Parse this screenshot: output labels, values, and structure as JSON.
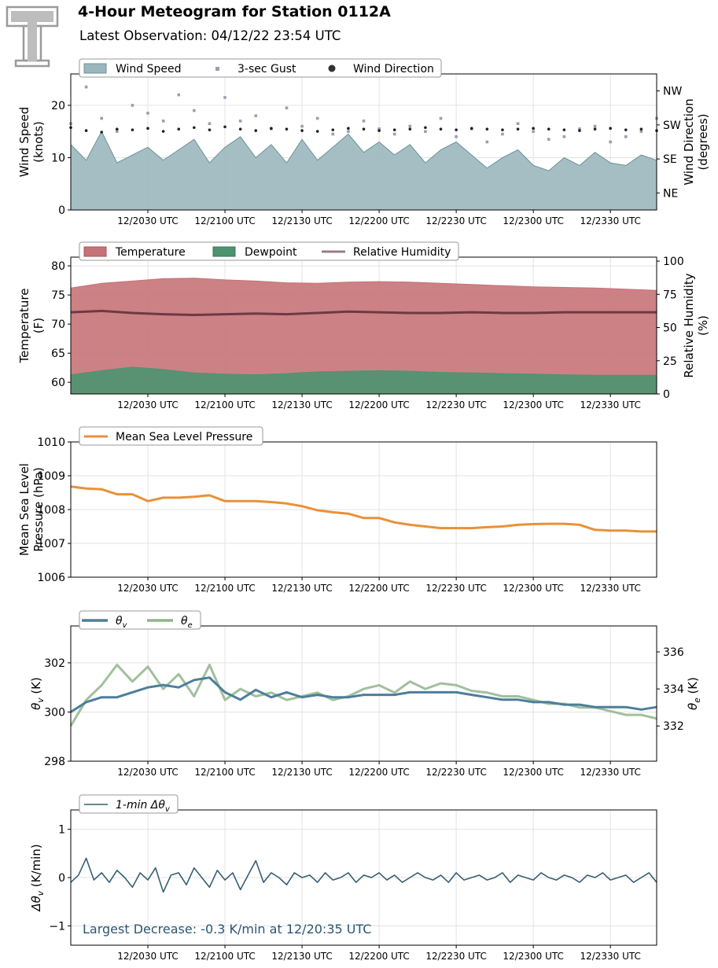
{
  "header": {
    "title": "4-Hour Meteogram for Station 0112A",
    "subtitle": "Latest Observation: 04/12/22 23:54 UTC"
  },
  "colors": {
    "wind_fill": "#9bb7bd",
    "wind_line": "#6b9299",
    "gust": "#9d9cb8",
    "direction": "#222222",
    "temperature": "#c67378",
    "dewpoint": "#4c9470",
    "rh": "#6e3a42",
    "pressure": "#e8913a",
    "theta_v": "#4d7e9b",
    "theta_e": "#8fb58a",
    "dtheta": "#355f72",
    "annotation": "#2b5672"
  },
  "time_axis": {
    "ticks": [
      "12/2030 UTC",
      "12/2100 UTC",
      "12/2130 UTC",
      "12/2200 UTC",
      "12/2230 UTC",
      "12/2300 UTC",
      "12/2330 UTC"
    ],
    "tick_minutes": [
      30,
      60,
      90,
      120,
      150,
      180,
      210
    ],
    "start": "12/20:00 UTC",
    "range_minutes": [
      0,
      228
    ]
  },
  "chart_data": [
    {
      "id": "wind",
      "type": "area",
      "ylabel": "Wind Speed\n(knots)",
      "y2label": "Wind Direction\n(degrees)",
      "ylim": [
        0,
        26
      ],
      "yticks": [
        "0",
        "10",
        "20"
      ],
      "ytick_values": [
        0,
        10,
        20
      ],
      "y2lim": [
        0,
        360
      ],
      "y2ticks": [
        "NE",
        "SE",
        "SW",
        "NW"
      ],
      "y2tick_values": [
        45,
        135,
        225,
        315
      ],
      "legend": [
        "Wind Speed",
        "3-sec Gust",
        "Wind Direction"
      ],
      "legend_location": "top-left",
      "grid": true,
      "series": [
        {
          "name": "Wind Speed",
          "style": "area",
          "axis": "left",
          "x_step_minutes": 6,
          "values": [
            12.5,
            9.5,
            15.0,
            9.0,
            10.5,
            12.0,
            9.5,
            11.5,
            13.5,
            9.0,
            12.0,
            14.0,
            10.0,
            12.5,
            9.0,
            13.5,
            9.5,
            12.0,
            14.5,
            11.0,
            13.0,
            10.5,
            12.5,
            9.0,
            11.5,
            13.0,
            10.5,
            8.0,
            10.0,
            11.5,
            8.5,
            7.5,
            10.0,
            8.5,
            11.0,
            9.0,
            8.5,
            10.5,
            9.5,
            11.5
          ]
        },
        {
          "name": "3-sec Gust",
          "style": "scatter",
          "axis": "left",
          "x_step_minutes": 6,
          "values": [
            16.5,
            23.5,
            17.5,
            15.0,
            20.0,
            18.5,
            17.0,
            22.0,
            19.0,
            16.5,
            21.5,
            17.0,
            18.0,
            15.5,
            19.5,
            16.0,
            17.5,
            14.5,
            15.0,
            17.0,
            15.5,
            14.5,
            16.0,
            15.0,
            17.5,
            14.0,
            15.5,
            13.0,
            14.5,
            16.5,
            15.0,
            13.5,
            14.0,
            15.5,
            16.0,
            13.0,
            14.0,
            15.0,
            17.5,
            13.5
          ]
        },
        {
          "name": "Wind Direction",
          "style": "scatter",
          "axis": "right",
          "x_step_minutes": 6,
          "values": [
            218,
            210,
            206,
            214,
            212,
            216,
            208,
            214,
            218,
            212,
            220,
            214,
            210,
            216,
            214,
            210,
            208,
            212,
            216,
            214,
            210,
            212,
            214,
            218,
            214,
            212,
            216,
            214,
            212,
            214,
            216,
            214,
            212,
            210,
            214,
            216,
            212,
            214,
            210,
            214
          ]
        }
      ]
    },
    {
      "id": "temperature",
      "type": "area",
      "ylabel": "Temperature\n(F)",
      "y2label": "Relative Humidity\n(%)",
      "ylim": [
        58,
        81.5
      ],
      "yticks": [
        "60",
        "65",
        "70",
        "75",
        "80"
      ],
      "ytick_values": [
        60,
        65,
        70,
        75,
        80
      ],
      "y2lim": [
        0,
        103
      ],
      "y2ticks": [
        "0",
        "25",
        "50",
        "75",
        "100"
      ],
      "y2tick_values": [
        0,
        25,
        50,
        75,
        100
      ],
      "legend": [
        "Temperature",
        "Dewpoint",
        "Relative Humidity"
      ],
      "legend_location": "top-left",
      "grid": true,
      "series": [
        {
          "name": "Temperature",
          "style": "area",
          "axis": "left",
          "x_step_minutes": 12,
          "values": [
            76.2,
            77.0,
            77.4,
            77.8,
            77.9,
            77.6,
            77.4,
            77.1,
            77.0,
            77.2,
            77.3,
            77.2,
            77.0,
            76.8,
            76.6,
            76.4,
            76.3,
            76.2,
            76.0,
            75.8
          ]
        },
        {
          "name": "Dewpoint",
          "style": "area",
          "axis": "left",
          "x_step_minutes": 12,
          "values": [
            61.3,
            62.0,
            62.6,
            62.2,
            61.6,
            61.4,
            61.3,
            61.5,
            61.8,
            61.9,
            62.0,
            61.9,
            61.7,
            61.6,
            61.5,
            61.4,
            61.3,
            61.2,
            61.2,
            61.2
          ]
        },
        {
          "name": "Relative Humidity",
          "style": "line",
          "axis": "right",
          "x_step_minutes": 12,
          "values": [
            61.5,
            62.5,
            61.0,
            60.0,
            59.5,
            60.0,
            60.5,
            60.0,
            61.0,
            62.0,
            61.5,
            61.0,
            61.0,
            61.5,
            61.0,
            61.0,
            61.5,
            61.5,
            61.5,
            61.5
          ]
        }
      ]
    },
    {
      "id": "pressure",
      "type": "line",
      "ylabel": "Mean Sea Level\nPressure (hPa)",
      "ylim": [
        1006,
        1010
      ],
      "yticks": [
        "1006",
        "1007",
        "1008",
        "1009",
        "1010"
      ],
      "ytick_values": [
        1006,
        1007,
        1008,
        1009,
        1010
      ],
      "legend": [
        "Mean Sea Level Pressure"
      ],
      "legend_location": "top-left",
      "grid": true,
      "series": [
        {
          "name": "Mean Sea Level Pressure",
          "style": "line",
          "axis": "left",
          "x_step_minutes": 6,
          "values": [
            1008.68,
            1008.62,
            1008.6,
            1008.45,
            1008.45,
            1008.25,
            1008.35,
            1008.35,
            1008.38,
            1008.42,
            1008.25,
            1008.25,
            1008.25,
            1008.22,
            1008.18,
            1008.1,
            1007.98,
            1007.92,
            1007.88,
            1007.75,
            1007.75,
            1007.62,
            1007.55,
            1007.5,
            1007.45,
            1007.45,
            1007.45,
            1007.48,
            1007.5,
            1007.55,
            1007.57,
            1007.58,
            1007.58,
            1007.55,
            1007.4,
            1007.38,
            1007.38,
            1007.35,
            1007.35,
            1007.25
          ]
        }
      ]
    },
    {
      "id": "theta",
      "type": "line",
      "ylabel": "θv (K)",
      "y2label": "θe (K)",
      "ylim": [
        298,
        303.5
      ],
      "yticks": [
        "298",
        "300",
        "302"
      ],
      "ytick_values": [
        298,
        300,
        302
      ],
      "y2lim": [
        330.1,
        337.4
      ],
      "y2ticks": [
        "332",
        "334",
        "336"
      ],
      "y2tick_values": [
        332,
        334,
        336
      ],
      "legend": [
        "θv",
        "θe"
      ],
      "legend_location": "top-left",
      "grid": true,
      "series": [
        {
          "name": "θv",
          "style": "line",
          "axis": "left",
          "x_step_minutes": 6,
          "values": [
            300.0,
            300.4,
            300.6,
            300.6,
            300.8,
            301.0,
            301.1,
            301.0,
            301.3,
            301.4,
            300.8,
            300.5,
            300.9,
            300.6,
            300.8,
            300.6,
            300.7,
            300.6,
            300.6,
            300.7,
            300.7,
            300.7,
            300.8,
            300.8,
            300.8,
            300.8,
            300.7,
            300.6,
            300.5,
            300.5,
            300.4,
            300.4,
            300.3,
            300.3,
            300.2,
            300.2,
            300.2,
            300.1,
            300.2,
            300.0
          ]
        },
        {
          "name": "θe",
          "style": "line",
          "axis": "right",
          "x_step_minutes": 6,
          "values": [
            332.0,
            333.4,
            334.2,
            335.3,
            334.4,
            335.2,
            334.0,
            334.8,
            333.6,
            335.3,
            333.4,
            334.0,
            333.6,
            333.8,
            333.4,
            333.6,
            333.8,
            333.4,
            333.6,
            334.0,
            334.2,
            333.8,
            334.4,
            334.0,
            334.3,
            334.2,
            333.9,
            333.8,
            333.6,
            333.6,
            333.4,
            333.2,
            333.2,
            333.0,
            333.0,
            332.8,
            332.6,
            332.6,
            332.4,
            332.6
          ]
        }
      ]
    },
    {
      "id": "dtheta",
      "type": "line",
      "ylabel": "Δθv (K/min)",
      "ylim": [
        -1.4,
        1.4
      ],
      "yticks": [
        "−1",
        "0",
        "1"
      ],
      "ytick_values": [
        -1,
        0,
        1
      ],
      "legend": [
        "1-min Δθv"
      ],
      "legend_location": "top-left",
      "grid": true,
      "annotation": "Largest Decrease: -0.3 K/min at 12/20:35 UTC",
      "series": [
        {
          "name": "1-min Δθv",
          "style": "line",
          "axis": "left",
          "x_step_minutes": 3,
          "values": [
            -0.1,
            0.05,
            0.4,
            -0.05,
            0.1,
            -0.1,
            0.15,
            0.0,
            -0.2,
            0.1,
            -0.05,
            0.2,
            -0.3,
            0.05,
            0.1,
            -0.15,
            0.2,
            0.0,
            -0.2,
            0.15,
            -0.05,
            0.1,
            -0.25,
            0.05,
            0.35,
            -0.1,
            0.1,
            0.0,
            -0.15,
            0.1,
            0.0,
            0.05,
            -0.1,
            0.1,
            -0.05,
            0.0,
            0.1,
            -0.1,
            0.05,
            0.0,
            0.1,
            -0.05,
            0.05,
            -0.1,
            0.0,
            0.1,
            0.0,
            -0.05,
            0.05,
            -0.1,
            0.1,
            -0.05,
            0.0,
            0.05,
            -0.05,
            0.0,
            0.1,
            -0.1,
            0.05,
            0.0,
            -0.05,
            0.1,
            0.0,
            -0.05,
            0.05,
            0.0,
            -0.1,
            0.05,
            0.0,
            0.1,
            -0.05,
            0.0,
            0.05,
            -0.1,
            0.0,
            0.1,
            -0.1
          ]
        }
      ]
    }
  ]
}
